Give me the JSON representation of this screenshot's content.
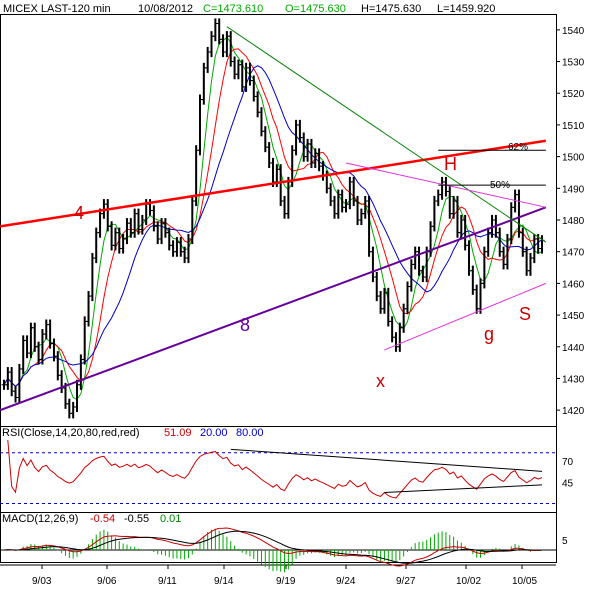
{
  "header": {
    "symbol": "MICEX LAST-120 min",
    "date": "10/08/2012",
    "close": "C=1473.610",
    "open": "O=1475.630",
    "high": "H=1475.630",
    "low": "L=1459.920"
  },
  "rsi_label": {
    "prefix": "RSI(Close,14,20,80,red,red)",
    "value": "51.09",
    "low": "20.00",
    "high": "80.00"
  },
  "macd_label": {
    "prefix": "MACD(12,26,9)",
    "macd": "-0.54",
    "signal": "-0.55",
    "hist": "0.01"
  },
  "colors": {
    "price": "#000000",
    "ma_fast": "#00aa00",
    "ma_mid": "#ff0000",
    "ma_slow": "#0000cc",
    "trend_red": "#ff0000",
    "trend_purple": "#660099",
    "trend_green": "#008000",
    "trend_magenta": "#dd33dd",
    "annotation": "#cc0000",
    "macd_hist": "#00aa00"
  },
  "chart_data": [
    {
      "type": "line",
      "panel": "price",
      "ylim": [
        1415,
        1545
      ],
      "y_ticks": [
        1420,
        1430,
        1440,
        1450,
        1460,
        1470,
        1480,
        1490,
        1500,
        1510,
        1520,
        1530,
        1540
      ],
      "x_tick_labels": [
        "9/03",
        "9/06",
        "9/11",
        "9/14",
        "9/19",
        "9/24",
        "9/27",
        "10/02",
        "10/05"
      ],
      "series": [
        {
          "values": [
            1428,
            1432,
            1426,
            1424,
            1433,
            1442,
            1438,
            1446,
            1440,
            1436,
            1444,
            1447,
            1441,
            1437,
            1431,
            1427,
            1422,
            1419,
            1421,
            1428,
            1436,
            1448,
            1456,
            1468,
            1476,
            1482,
            1485,
            1478,
            1472,
            1476,
            1471,
            1474,
            1479,
            1476,
            1482,
            1477,
            1480,
            1485,
            1483,
            1478,
            1474,
            1479,
            1476,
            1472,
            1470,
            1473,
            1470,
            1468,
            1474,
            1486,
            1502,
            1518,
            1528,
            1533,
            1538,
            1542,
            1537,
            1533,
            1538,
            1530,
            1526,
            1529,
            1522,
            1528,
            1524,
            1519,
            1514,
            1508,
            1503,
            1498,
            1492,
            1496,
            1486,
            1482,
            1492,
            1502,
            1510,
            1506,
            1500,
            1504,
            1498,
            1501,
            1497,
            1494,
            1490,
            1486,
            1482,
            1488,
            1484,
            1485,
            1492,
            1486,
            1480,
            1482,
            1486,
            1470,
            1462,
            1456,
            1452,
            1457,
            1448,
            1443,
            1440,
            1446,
            1452,
            1459,
            1466,
            1470,
            1464,
            1462,
            1470,
            1478,
            1486,
            1488,
            1492,
            1489,
            1482,
            1486,
            1476,
            1480,
            1472,
            1464,
            1458,
            1452,
            1460,
            1470,
            1476,
            1480,
            1476,
            1470,
            1466,
            1474,
            1484,
            1488,
            1476,
            1470,
            1464,
            1468,
            1474,
            1471,
            1473.6
          ]
        }
      ],
      "annotations": [
        "4",
        "8",
        "x",
        "H",
        "g",
        "S",
        "62%",
        "50%"
      ]
    },
    {
      "type": "line",
      "panel": "rsi",
      "ylim": [
        10,
        95
      ],
      "y_ticks": [
        45,
        70
      ],
      "reference_lines": [
        20,
        80
      ]
    },
    {
      "type": "bar",
      "panel": "macd",
      "y_ticks": [
        5
      ]
    }
  ]
}
